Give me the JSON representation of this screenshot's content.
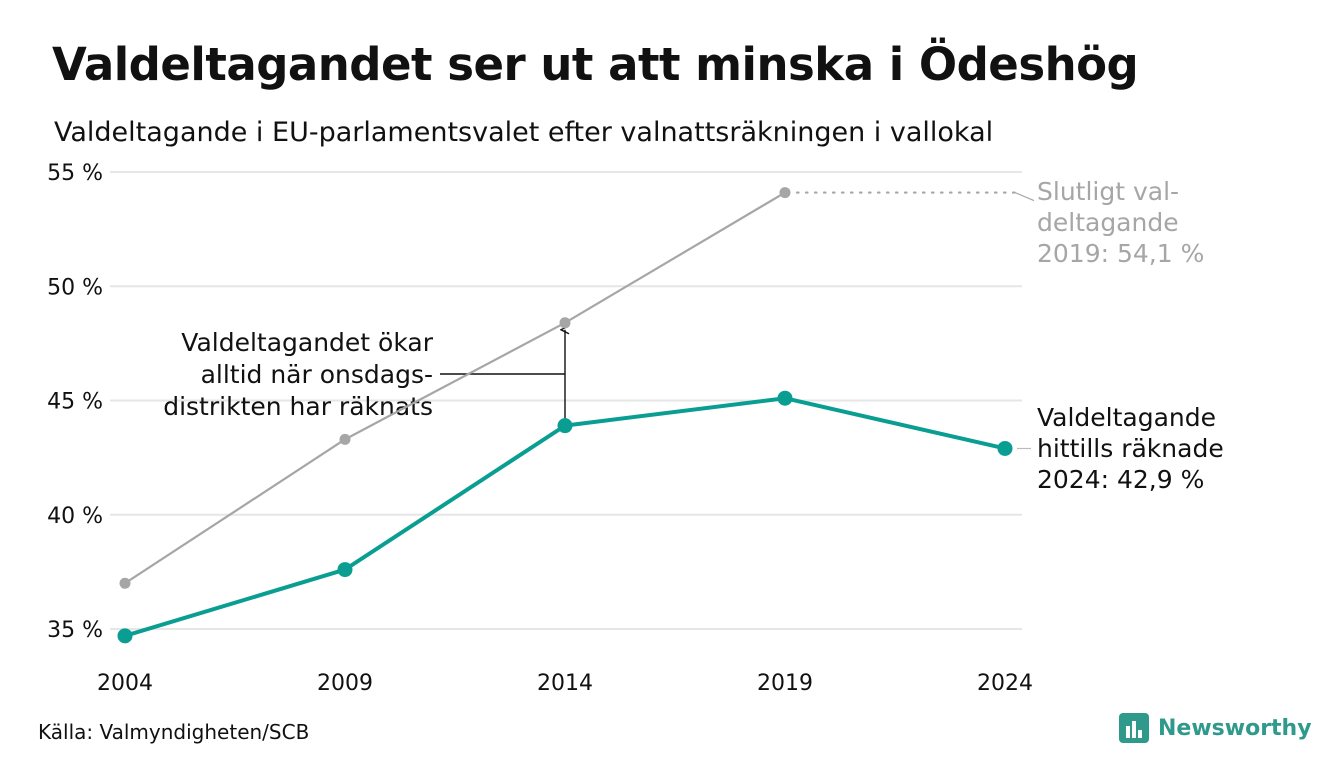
{
  "title": "Valdeltagandet ser ut att minska i Ödeshög",
  "subtitle": "Valdeltagande i EU-parlamentsvalet efter valnattsräkningen i vallokal",
  "source": "Källa: Valmyndigheten/SCB",
  "brand": "Newsworthy",
  "colors": {
    "counted": "#0a9e92",
    "final": "#a6a6a6",
    "grid": "#e6e6e6",
    "text": "#111111",
    "brand": "#2f9a8c"
  },
  "chart_data": {
    "type": "line",
    "x": [
      "2004",
      "2009",
      "2014",
      "2019",
      "2024"
    ],
    "ylim": [
      35,
      55
    ],
    "yticks": [
      35,
      40,
      45,
      50,
      55
    ],
    "ytick_labels": [
      "35 %",
      "40 %",
      "45 %",
      "50 %",
      "55 %"
    ],
    "grid": true,
    "series": [
      {
        "key": "final",
        "values": [
          37.0,
          43.3,
          48.4,
          54.1,
          null
        ]
      },
      {
        "key": "counted",
        "values": [
          34.7,
          37.6,
          43.9,
          45.1,
          42.9
        ]
      }
    ],
    "annotations": {
      "final_label": [
        "Slutligt val-",
        "deltagande",
        "2019: 54,1 %"
      ],
      "counted_label": [
        "Valdeltagande",
        "hittills räknade",
        "2024: 42,9 %"
      ],
      "gap_note": [
        "Valdeltagandet ökar",
        "alltid när onsdags-",
        "distrikten har räknats"
      ]
    }
  }
}
